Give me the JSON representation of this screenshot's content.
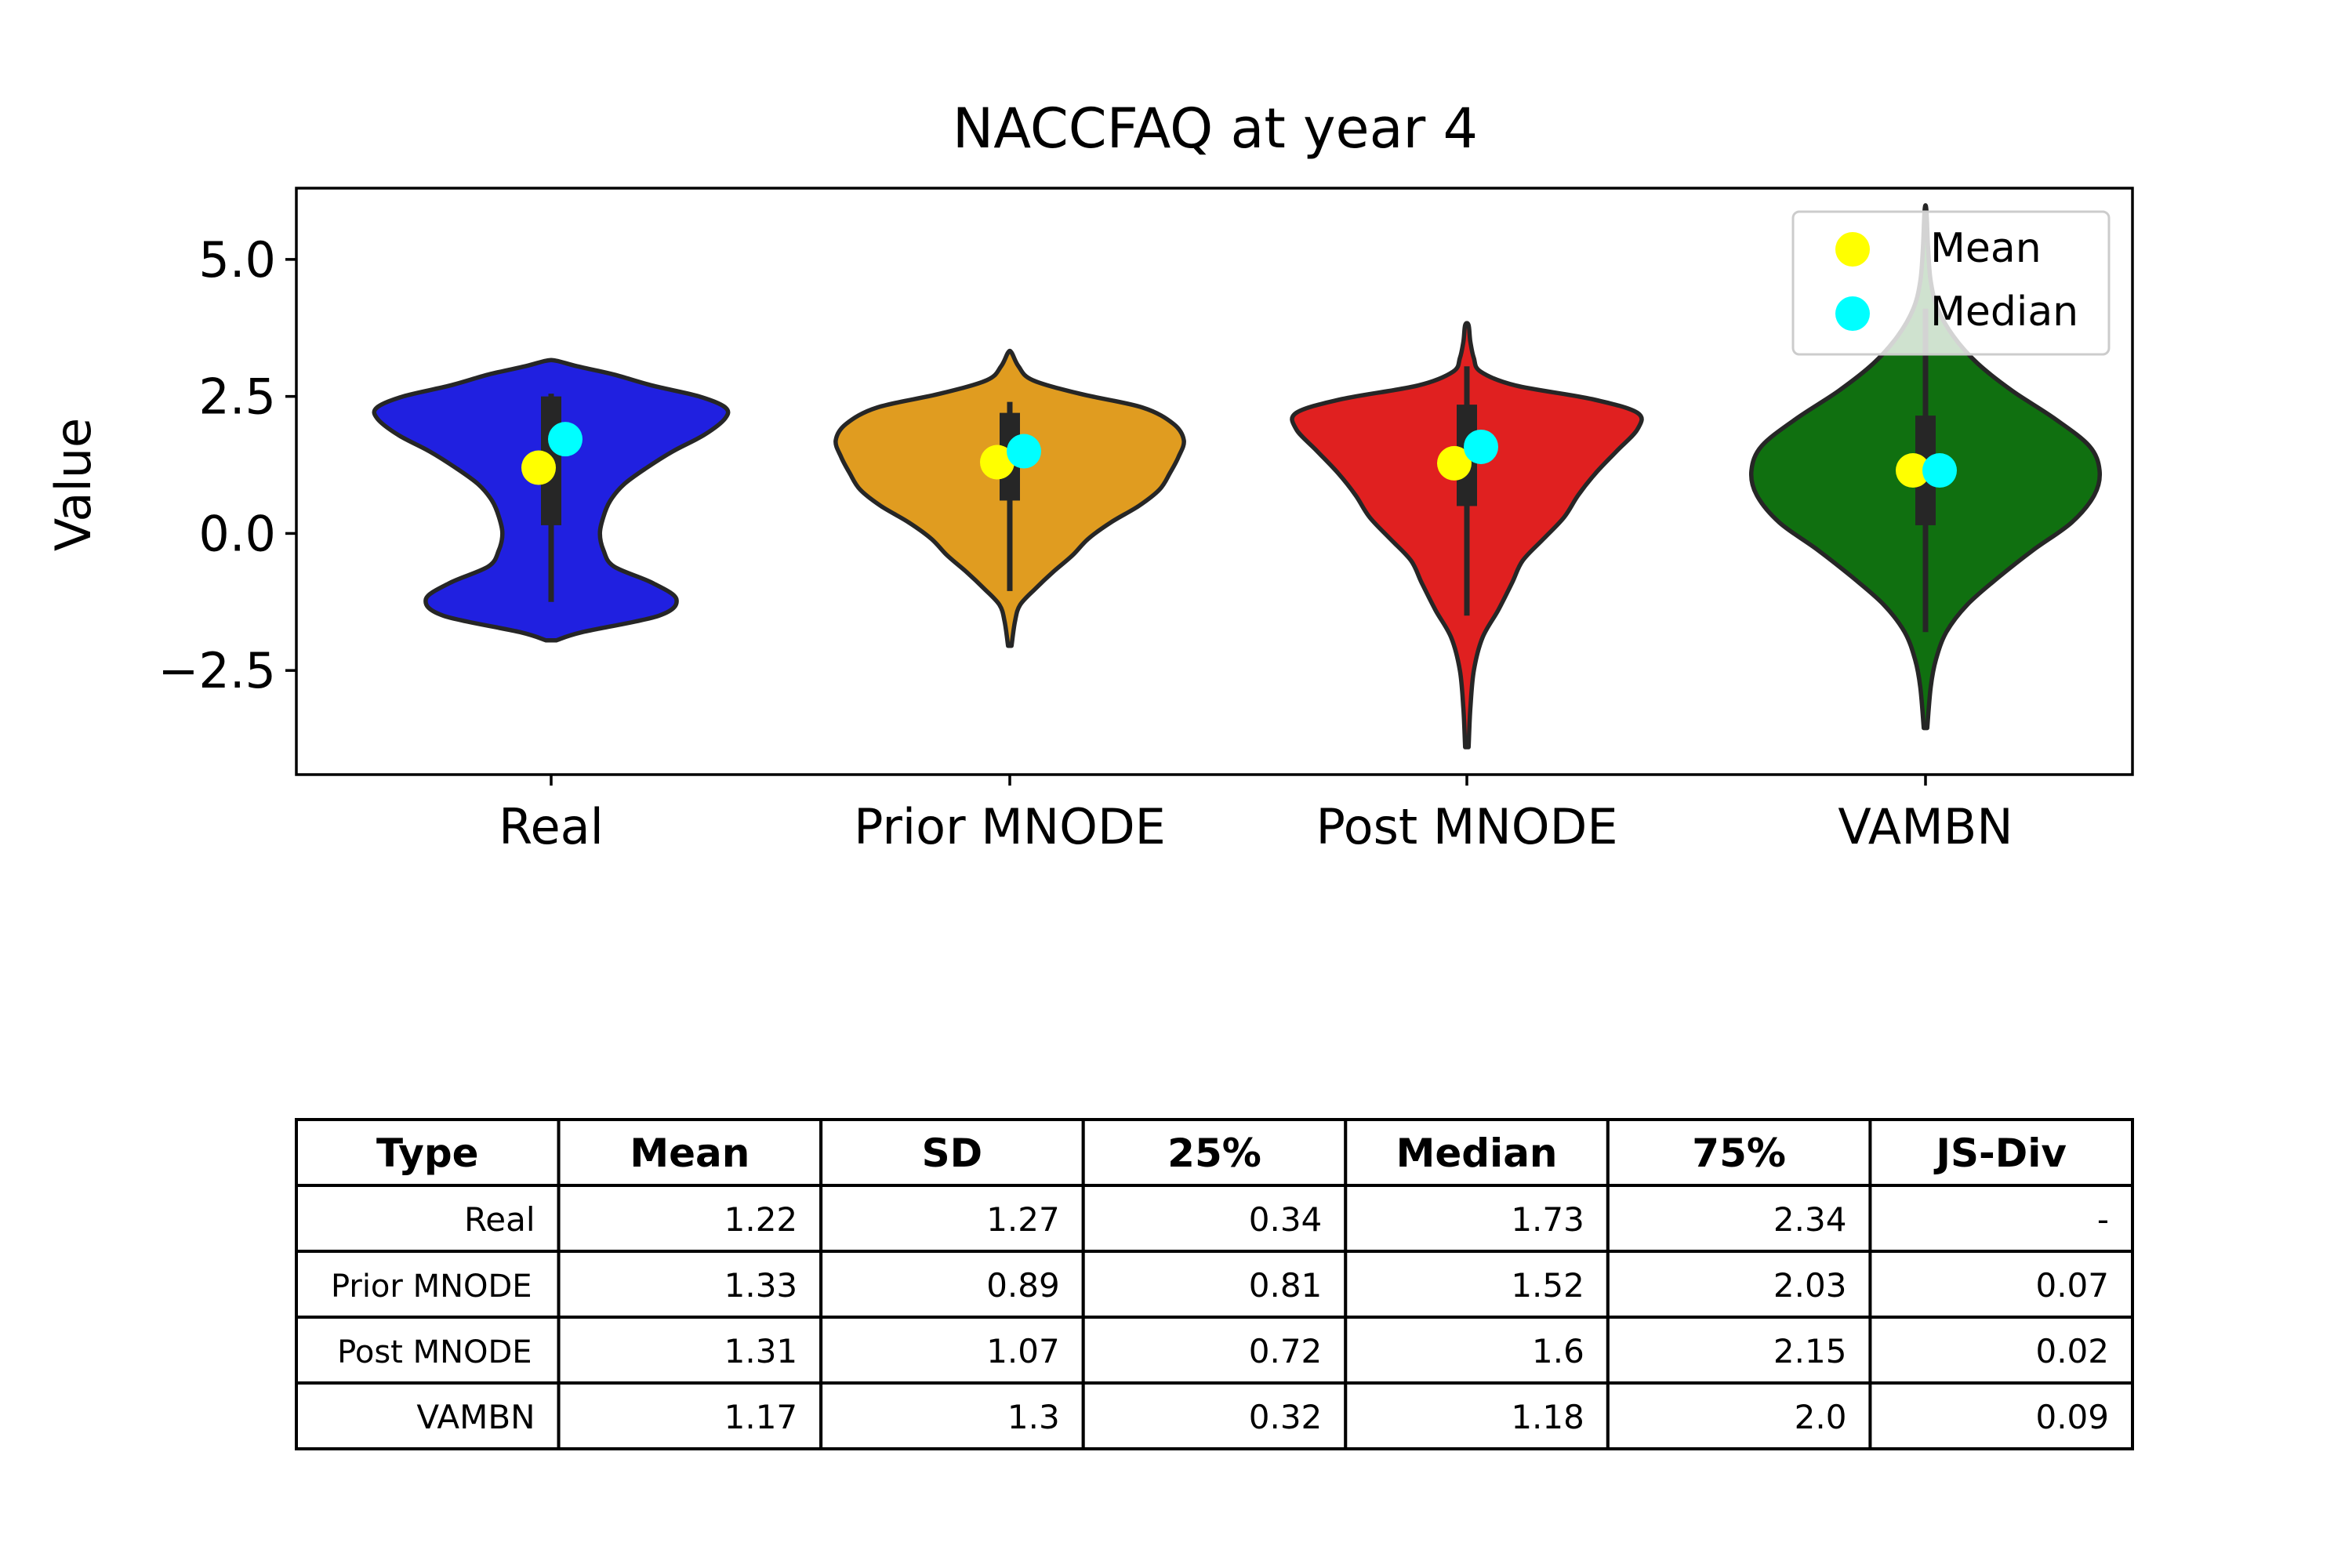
{
  "chart_data": {
    "type": "violin",
    "title": "NACCFAQ at year 4",
    "xlabel": "",
    "ylabel": "Value",
    "ylim": [
      -4.4,
      6.3
    ],
    "yticks": [
      -2.5,
      0.0,
      2.5,
      5.0
    ],
    "ytick_labels": [
      "−2.5",
      "0.0",
      "2.5",
      "5.0"
    ],
    "grid": false,
    "legend_position": "top-right",
    "legend": [
      {
        "label": "Mean",
        "color": "#ffff00"
      },
      {
        "label": "Median",
        "color": "#00ffff"
      }
    ],
    "series": [
      {
        "name": "Real",
        "color": "#2020e0",
        "min": -1.95,
        "max": 3.15,
        "whisker_low": -1.25,
        "whisker_high": 2.55,
        "q1": 0.15,
        "q3": 2.5,
        "mean": 1.2,
        "median": 1.72,
        "density": [
          [
            -1.95,
            0.03
          ],
          [
            -1.8,
            0.18
          ],
          [
            -1.5,
            0.62
          ],
          [
            -1.2,
            0.72
          ],
          [
            -0.9,
            0.58
          ],
          [
            -0.6,
            0.36
          ],
          [
            -0.3,
            0.3
          ],
          [
            0.0,
            0.28
          ],
          [
            0.3,
            0.3
          ],
          [
            0.6,
            0.34
          ],
          [
            0.9,
            0.42
          ],
          [
            1.2,
            0.55
          ],
          [
            1.5,
            0.7
          ],
          [
            1.8,
            0.88
          ],
          [
            2.1,
            1.0
          ],
          [
            2.3,
            1.0
          ],
          [
            2.5,
            0.85
          ],
          [
            2.7,
            0.58
          ],
          [
            2.9,
            0.36
          ],
          [
            3.05,
            0.15
          ],
          [
            3.15,
            0.03
          ]
        ]
      },
      {
        "name": "Prior MNODE",
        "color": "#e09c20",
        "min": -2.05,
        "max": 3.3,
        "whisker_low": -1.05,
        "whisker_high": 2.4,
        "q1": 0.6,
        "q3": 2.2,
        "mean": 1.3,
        "median": 1.5,
        "density": [
          [
            -2.05,
            0.01
          ],
          [
            -1.6,
            0.03
          ],
          [
            -1.3,
            0.06
          ],
          [
            -1.0,
            0.15
          ],
          [
            -0.7,
            0.25
          ],
          [
            -0.4,
            0.36
          ],
          [
            -0.1,
            0.45
          ],
          [
            0.2,
            0.58
          ],
          [
            0.5,
            0.74
          ],
          [
            0.8,
            0.86
          ],
          [
            1.1,
            0.92
          ],
          [
            1.4,
            0.97
          ],
          [
            1.7,
            1.0
          ],
          [
            2.0,
            0.94
          ],
          [
            2.3,
            0.76
          ],
          [
            2.55,
            0.4
          ],
          [
            2.8,
            0.13
          ],
          [
            3.05,
            0.05
          ],
          [
            3.3,
            0.01
          ]
        ]
      },
      {
        "name": "Post MNODE",
        "color": "#e02020",
        "min": -3.9,
        "max": 3.8,
        "whisker_low": -1.5,
        "whisker_high": 3.05,
        "q1": 0.5,
        "q3": 2.35,
        "mean": 1.28,
        "median": 1.58,
        "density": [
          [
            -3.9,
            0.01
          ],
          [
            -3.2,
            0.02
          ],
          [
            -2.5,
            0.04
          ],
          [
            -1.9,
            0.09
          ],
          [
            -1.4,
            0.18
          ],
          [
            -0.9,
            0.26
          ],
          [
            -0.5,
            0.32
          ],
          [
            -0.1,
            0.44
          ],
          [
            0.3,
            0.56
          ],
          [
            0.7,
            0.64
          ],
          [
            1.1,
            0.74
          ],
          [
            1.5,
            0.86
          ],
          [
            1.9,
            0.98
          ],
          [
            2.2,
            0.98
          ],
          [
            2.45,
            0.72
          ],
          [
            2.7,
            0.28
          ],
          [
            2.95,
            0.08
          ],
          [
            3.2,
            0.04
          ],
          [
            3.5,
            0.02
          ],
          [
            3.8,
            0.01
          ]
        ]
      },
      {
        "name": "VAMBN",
        "color": "#107010",
        "min": -3.55,
        "max": 5.9,
        "whisker_low": -1.8,
        "whisker_high": 4.1,
        "q1": 0.15,
        "q3": 2.15,
        "mean": 1.15,
        "median": 1.15,
        "density": [
          [
            -3.55,
            0.01
          ],
          [
            -2.8,
            0.03
          ],
          [
            -2.3,
            0.06
          ],
          [
            -1.8,
            0.12
          ],
          [
            -1.3,
            0.24
          ],
          [
            -0.8,
            0.42
          ],
          [
            -0.3,
            0.62
          ],
          [
            0.2,
            0.84
          ],
          [
            0.7,
            0.97
          ],
          [
            1.15,
            1.0
          ],
          [
            1.6,
            0.94
          ],
          [
            2.1,
            0.74
          ],
          [
            2.6,
            0.5
          ],
          [
            3.1,
            0.3
          ],
          [
            3.6,
            0.16
          ],
          [
            4.1,
            0.07
          ],
          [
            4.6,
            0.03
          ],
          [
            5.2,
            0.015
          ],
          [
            5.9,
            0.005
          ]
        ]
      }
    ]
  },
  "table": {
    "headers": [
      "Type",
      "Mean",
      "SD",
      "25%",
      "Median",
      "75%",
      "JS-Div"
    ],
    "rows": [
      [
        "Real",
        "1.22",
        "1.27",
        "0.34",
        "1.73",
        "2.34",
        "-"
      ],
      [
        "Prior MNODE",
        "1.33",
        "0.89",
        "0.81",
        "1.52",
        "2.03",
        "0.07"
      ],
      [
        "Post MNODE",
        "1.31",
        "1.07",
        "0.72",
        "1.6",
        "2.15",
        "0.02"
      ],
      [
        "VAMBN",
        "1.17",
        "1.3",
        "0.32",
        "1.18",
        "2.0",
        "0.09"
      ]
    ]
  }
}
